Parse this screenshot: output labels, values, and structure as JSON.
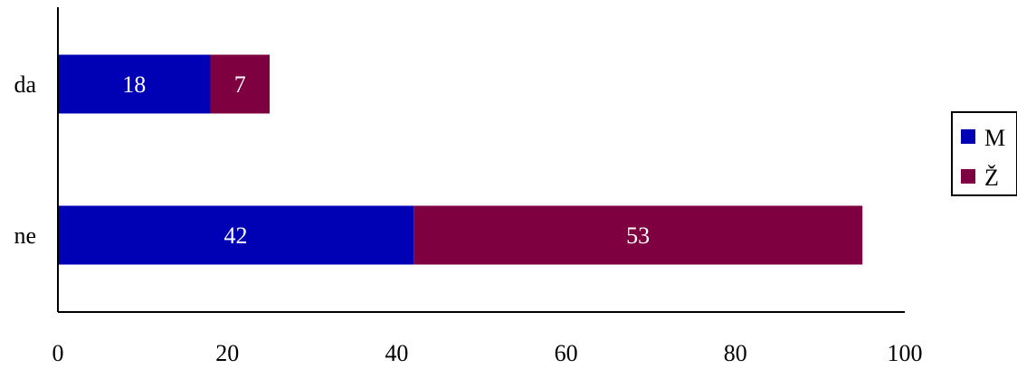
{
  "chart_data": {
    "type": "bar",
    "orientation": "horizontal",
    "stacked": true,
    "categories": [
      "da",
      "ne"
    ],
    "series": [
      {
        "name": "M",
        "values": [
          18,
          42
        ],
        "color": "#0000b4"
      },
      {
        "name": "Ž",
        "values": [
          7,
          53
        ],
        "color": "#7f0040"
      }
    ],
    "xlim": [
      0,
      100
    ],
    "x_ticks": [
      "0",
      "20",
      "40",
      "60",
      "80",
      "100"
    ],
    "title": "",
    "xlabel": "",
    "ylabel": "",
    "grid": false,
    "legend": "right",
    "data_labels": true
  }
}
